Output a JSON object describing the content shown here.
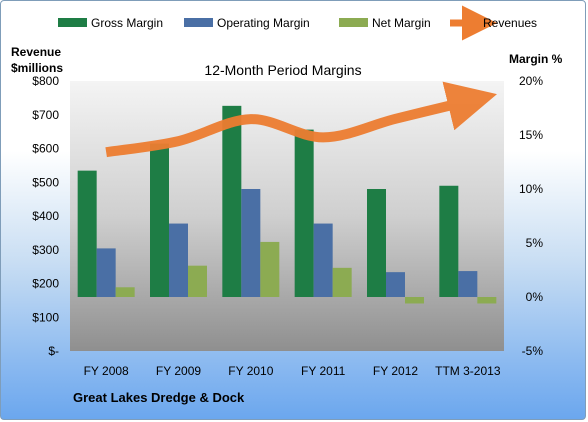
{
  "chart_data": {
    "type": "bar",
    "title": "12-Month Period Margins",
    "subtitle": "Great Lakes Dredge & Dock",
    "categories": [
      "FY 2008",
      "FY 2009",
      "FY 2010",
      "FY 2011",
      "FY 2012",
      "TTM 3-2013"
    ],
    "y_left": {
      "label_lines": [
        "Revenue",
        "$millions"
      ],
      "ylim": [
        0,
        800
      ],
      "ticks": [
        0,
        100,
        200,
        300,
        400,
        500,
        600,
        700,
        800
      ],
      "tick_labels": [
        "$-",
        "$100",
        "$200",
        "$300",
        "$400",
        "$500",
        "$600",
        "$700",
        "$800"
      ]
    },
    "y_right": {
      "label": "Margin %",
      "ylim": [
        -5,
        20
      ],
      "ticks": [
        -5,
        0,
        5,
        10,
        15,
        20
      ],
      "tick_labels": [
        "-5%",
        "0%",
        "5%",
        "10%",
        "15%",
        "20%"
      ]
    },
    "series": [
      {
        "name": "Gross Margin",
        "kind": "bar",
        "axis": "right",
        "color": "#1e7d45",
        "values": [
          11.7,
          14.2,
          17.7,
          15.5,
          10.0,
          10.3
        ]
      },
      {
        "name": "Operating Margin",
        "kind": "bar",
        "axis": "right",
        "color": "#4a6fa5",
        "values": [
          4.5,
          6.8,
          10.0,
          6.8,
          2.3,
          2.4
        ]
      },
      {
        "name": "Net Margin",
        "kind": "bar",
        "axis": "right",
        "color": "#8cab52",
        "values": [
          0.9,
          2.9,
          5.1,
          2.7,
          -0.6,
          -0.6
        ]
      },
      {
        "name": "Revenues",
        "kind": "line",
        "axis": "left",
        "color": "#ed7d31",
        "values": [
          589,
          622,
          687,
          633,
          688,
          740
        ]
      }
    ],
    "legend_position": "top",
    "grid": false
  }
}
